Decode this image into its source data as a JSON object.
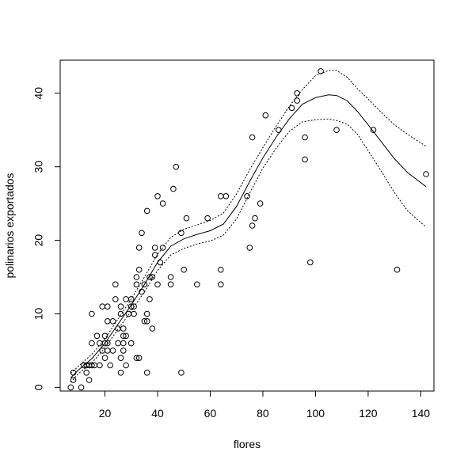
{
  "chart_data": {
    "type": "scatter",
    "title": "",
    "xlabel": "flores",
    "ylabel": "polinarios exportados",
    "xlim": [
      3,
      145
    ],
    "ylim": [
      -0.5,
      44.5
    ],
    "x_ticks": [
      20,
      40,
      60,
      80,
      100,
      120,
      140
    ],
    "y_ticks": [
      0,
      10,
      20,
      30,
      40
    ],
    "x_tick_labels": [
      "20",
      "40",
      "60",
      "80",
      "100",
      "120",
      "140"
    ],
    "y_tick_labels": [
      "0",
      "10",
      "20",
      "30",
      "40"
    ],
    "grid": false,
    "legend": "none",
    "points": [
      [
        7,
        0
      ],
      [
        8,
        1
      ],
      [
        8,
        2
      ],
      [
        11,
        0
      ],
      [
        12,
        3
      ],
      [
        13,
        2
      ],
      [
        13,
        3
      ],
      [
        14,
        1
      ],
      [
        14,
        3
      ],
      [
        15,
        3
      ],
      [
        15,
        10
      ],
      [
        15,
        6
      ],
      [
        16,
        3
      ],
      [
        17,
        7
      ],
      [
        18,
        3
      ],
      [
        18,
        6
      ],
      [
        19,
        5
      ],
      [
        19,
        11
      ],
      [
        20,
        4
      ],
      [
        20,
        6
      ],
      [
        20,
        7
      ],
      [
        21,
        6
      ],
      [
        21,
        5
      ],
      [
        21,
        9
      ],
      [
        21,
        11
      ],
      [
        22,
        3
      ],
      [
        23,
        5
      ],
      [
        23,
        9
      ],
      [
        24,
        12
      ],
      [
        24,
        14
      ],
      [
        25,
        6
      ],
      [
        25,
        8
      ],
      [
        26,
        4
      ],
      [
        26,
        11
      ],
      [
        26,
        2
      ],
      [
        26,
        10
      ],
      [
        27,
        8
      ],
      [
        27,
        7
      ],
      [
        27,
        5
      ],
      [
        27,
        6
      ],
      [
        28,
        3
      ],
      [
        28,
        12
      ],
      [
        28,
        7
      ],
      [
        29,
        10
      ],
      [
        30,
        6
      ],
      [
        30,
        12
      ],
      [
        30,
        11
      ],
      [
        31,
        10
      ],
      [
        31,
        11
      ],
      [
        32,
        15
      ],
      [
        32,
        14
      ],
      [
        32,
        4
      ],
      [
        33,
        4
      ],
      [
        33,
        19
      ],
      [
        33,
        16
      ],
      [
        34,
        13
      ],
      [
        34,
        21
      ],
      [
        35,
        9
      ],
      [
        35,
        14
      ],
      [
        36,
        9
      ],
      [
        36,
        10
      ],
      [
        36,
        2
      ],
      [
        36,
        24
      ],
      [
        37,
        15
      ],
      [
        37,
        12
      ],
      [
        38,
        15
      ],
      [
        38,
        8
      ],
      [
        39,
        19
      ],
      [
        39,
        18
      ],
      [
        40,
        26
      ],
      [
        40,
        14
      ],
      [
        42,
        25
      ],
      [
        42,
        19
      ],
      [
        41,
        17
      ],
      [
        45,
        15
      ],
      [
        45,
        14
      ],
      [
        46,
        27
      ],
      [
        47,
        30
      ],
      [
        49,
        21
      ],
      [
        49,
        2
      ],
      [
        50,
        16
      ],
      [
        51,
        23
      ],
      [
        55,
        14
      ],
      [
        59,
        23
      ],
      [
        64,
        26
      ],
      [
        64,
        16
      ],
      [
        64,
        14
      ],
      [
        66,
        26
      ],
      [
        74,
        26
      ],
      [
        75,
        19
      ],
      [
        76,
        22
      ],
      [
        76,
        34
      ],
      [
        77,
        23
      ],
      [
        79,
        25
      ],
      [
        81,
        37
      ],
      [
        86,
        35
      ],
      [
        91,
        38
      ],
      [
        93,
        39
      ],
      [
        93,
        40
      ],
      [
        96,
        34
      ],
      [
        96,
        31
      ],
      [
        98,
        17
      ],
      [
        102,
        43
      ],
      [
        108,
        35
      ],
      [
        122,
        35
      ],
      [
        131,
        16
      ],
      [
        142,
        29
      ]
    ],
    "series": [
      {
        "values": [
          [
            7,
            1.3
          ],
          [
            10,
            2.4
          ],
          [
            15,
            3.9
          ],
          [
            20,
            6.0
          ],
          [
            25,
            8.6
          ],
          [
            30,
            11.2
          ],
          [
            35,
            14.0
          ],
          [
            40,
            17.0
          ],
          [
            45,
            19.2
          ],
          [
            50,
            20.2
          ],
          [
            55,
            20.8
          ],
          [
            60,
            21.3
          ],
          [
            65,
            22.2
          ],
          [
            70,
            24.6
          ],
          [
            75,
            28.0
          ],
          [
            80,
            31.2
          ],
          [
            85,
            34.0
          ],
          [
            90,
            36.5
          ],
          [
            95,
            38.5
          ],
          [
            100,
            39.4
          ],
          [
            105,
            39.8
          ],
          [
            108,
            39.7
          ],
          [
            112,
            39.0
          ],
          [
            116,
            37.5
          ],
          [
            120,
            35.7
          ],
          [
            125,
            33.4
          ],
          [
            130,
            31.1
          ],
          [
            135,
            29.2
          ],
          [
            142,
            27.3
          ]
        ]
      },
      {
        "values": [
          [
            7,
            1.9
          ],
          [
            10,
            2.9
          ],
          [
            15,
            4.5
          ],
          [
            20,
            6.6
          ],
          [
            25,
            9.3
          ],
          [
            30,
            12.0
          ],
          [
            35,
            15.0
          ],
          [
            40,
            18.1
          ],
          [
            45,
            20.4
          ],
          [
            50,
            21.5
          ],
          [
            55,
            22.1
          ],
          [
            60,
            22.7
          ],
          [
            65,
            23.7
          ],
          [
            70,
            26.3
          ],
          [
            75,
            29.6
          ],
          [
            80,
            32.6
          ],
          [
            85,
            35.5
          ],
          [
            90,
            38.2
          ],
          [
            95,
            40.5
          ],
          [
            100,
            42.4
          ],
          [
            105,
            43.1
          ],
          [
            108,
            43.1
          ],
          [
            112,
            42.2
          ],
          [
            116,
            40.6
          ],
          [
            120,
            39.2
          ],
          [
            125,
            37.4
          ],
          [
            130,
            35.7
          ],
          [
            135,
            34.4
          ],
          [
            142,
            32.8
          ]
        ]
      },
      {
        "values": [
          [
            7,
            0.7
          ],
          [
            10,
            1.9
          ],
          [
            15,
            3.3
          ],
          [
            20,
            5.4
          ],
          [
            25,
            7.9
          ],
          [
            30,
            10.4
          ],
          [
            35,
            13.0
          ],
          [
            40,
            15.9
          ],
          [
            45,
            18.0
          ],
          [
            50,
            18.9
          ],
          [
            55,
            19.5
          ],
          [
            60,
            19.9
          ],
          [
            65,
            20.7
          ],
          [
            70,
            22.9
          ],
          [
            75,
            26.4
          ],
          [
            80,
            29.8
          ],
          [
            85,
            32.5
          ],
          [
            90,
            34.8
          ],
          [
            95,
            36.1
          ],
          [
            100,
            36.4
          ],
          [
            105,
            36.5
          ],
          [
            108,
            36.3
          ],
          [
            112,
            35.8
          ],
          [
            116,
            34.4
          ],
          [
            120,
            32.2
          ],
          [
            125,
            29.4
          ],
          [
            130,
            26.5
          ],
          [
            135,
            24.0
          ],
          [
            142,
            21.8
          ]
        ]
      }
    ]
  }
}
